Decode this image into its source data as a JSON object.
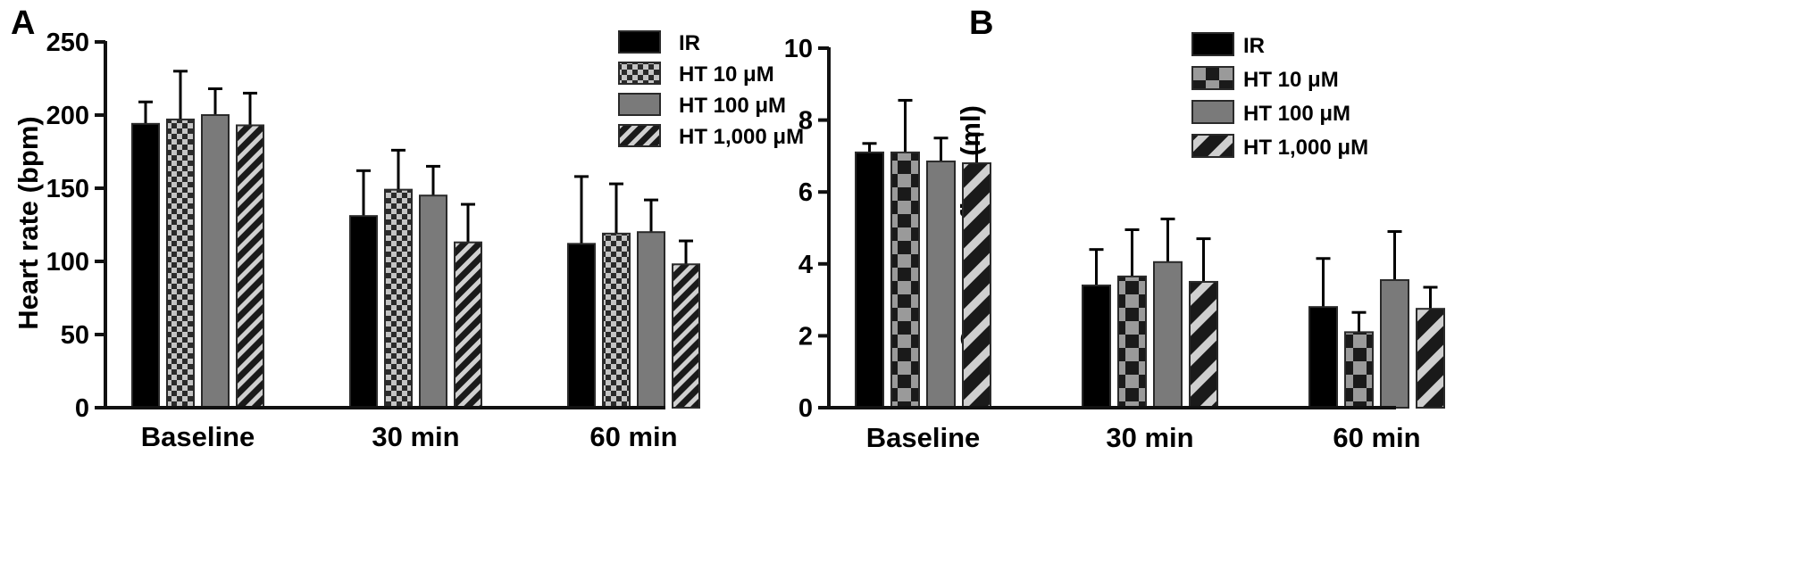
{
  "chart_data": [
    {
      "panel_label": "A",
      "type": "bar",
      "categories": [
        "Baseline",
        "30 min",
        "60 min"
      ],
      "ylabel": "Heart rate (bpm)",
      "xlabel": "",
      "ylim": [
        0,
        250
      ],
      "yticks": [
        "0",
        "50",
        "100",
        "150",
        "200",
        "250"
      ],
      "grid": false,
      "legend_position": "top-right",
      "series": [
        {
          "name": "IR",
          "pattern": "solid-black",
          "values": [
            194,
            131,
            112
          ],
          "errors": [
            15,
            31,
            46
          ]
        },
        {
          "name": "HT 10 μM",
          "pattern": "checker-fine",
          "values": [
            197,
            149,
            119
          ],
          "errors": [
            33,
            27,
            34
          ]
        },
        {
          "name": "HT 100 μM",
          "pattern": "solid-gray",
          "values": [
            200,
            145,
            120
          ],
          "errors": [
            18,
            20,
            22
          ]
        },
        {
          "name": "HT 1,000 μM",
          "pattern": "diagonal-fine",
          "values": [
            193,
            113,
            98
          ],
          "errors": [
            22,
            26,
            16
          ]
        }
      ]
    },
    {
      "panel_label": "B",
      "type": "bar",
      "categories": [
        "Baseline",
        "30 min",
        "60 min"
      ],
      "ylabel": "Coronary flow (ml)",
      "xlabel": "",
      "ylim": [
        0,
        10
      ],
      "yticks": [
        "0",
        "2",
        "4",
        "6",
        "8",
        "10"
      ],
      "grid": false,
      "legend_position": "top-right",
      "series": [
        {
          "name": "IR",
          "pattern": "solid-black",
          "values": [
            7.1,
            3.4,
            2.8
          ],
          "errors": [
            0.25,
            1.0,
            1.35
          ]
        },
        {
          "name": "HT 10 μM",
          "pattern": "checker-coarse",
          "values": [
            7.1,
            3.65,
            2.1
          ],
          "errors": [
            1.45,
            1.3,
            0.55
          ]
        },
        {
          "name": "HT 100 μM",
          "pattern": "solid-gray",
          "values": [
            6.85,
            4.05,
            3.55
          ],
          "errors": [
            0.65,
            1.2,
            1.35
          ]
        },
        {
          "name": "HT 1,000 μM",
          "pattern": "diagonal-coarse",
          "values": [
            6.8,
            3.5,
            2.75
          ],
          "errors": [
            0.8,
            1.2,
            0.6
          ]
        }
      ]
    }
  ],
  "colors": {
    "axis": "#111111",
    "black_bar": "#000000",
    "gray_bar": "#7a7a7a",
    "pattern_dark": "#1a1a1a",
    "pattern_light": "#bdbdbd"
  }
}
